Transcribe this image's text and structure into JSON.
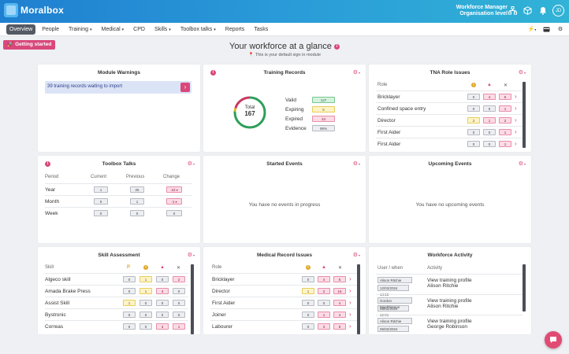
{
  "header": {
    "logo_text": "Moralbox",
    "org_title": "Workforce Manager",
    "org_level": "Organisation level",
    "avatar_initials": "JD"
  },
  "nav": {
    "items": [
      {
        "label": "Overview",
        "active": true,
        "dropdown": false
      },
      {
        "label": "People",
        "active": false,
        "dropdown": false
      },
      {
        "label": "Training",
        "active": false,
        "dropdown": true
      },
      {
        "label": "Medical",
        "active": false,
        "dropdown": true
      },
      {
        "label": "CPD",
        "active": false,
        "dropdown": false
      },
      {
        "label": "Skills",
        "active": false,
        "dropdown": true
      },
      {
        "label": "Toolbox talks",
        "active": false,
        "dropdown": true
      },
      {
        "label": "Reports",
        "active": false,
        "dropdown": false
      },
      {
        "label": "Tasks",
        "active": false,
        "dropdown": false
      }
    ]
  },
  "getting_started_label": "Getting started",
  "page": {
    "title": "Your workforce at a glance",
    "subtitle": "This is your default sign in module"
  },
  "module_warnings": {
    "title": "Module Warnings",
    "message": "39 training records waiting to import"
  },
  "training_records": {
    "title": "Training Records",
    "total_label": "Total",
    "total": "167",
    "legend": [
      {
        "label": "Valid",
        "value": "127",
        "color": "green"
      },
      {
        "label": "Expiring",
        "value": "6",
        "color": "yellow"
      },
      {
        "label": "Expired",
        "value": "34",
        "color": "red"
      },
      {
        "label": "Evidence",
        "value": "95%",
        "color": "grey"
      }
    ]
  },
  "tna_role_issues": {
    "title": "TNA Role Issues",
    "col_role": "Role",
    "rows": [
      {
        "role": "Bricklayer",
        "a": "0",
        "b": "4",
        "c": "5"
      },
      {
        "role": "Confined space entry",
        "a": "0",
        "b": "0",
        "c": "1"
      },
      {
        "role": "Director",
        "a": "2",
        "b": "1",
        "c": "2"
      },
      {
        "role": "First Aider",
        "a": "0",
        "b": "0",
        "c": "1"
      },
      {
        "role": "First Aider",
        "a": "0",
        "b": "0",
        "c": "1"
      }
    ]
  },
  "toolbox_talks": {
    "title": "Toolbox Talks",
    "cols": [
      "Period",
      "Current",
      "Previous",
      "Change"
    ],
    "rows": [
      {
        "period": "Year",
        "current": "1",
        "previous": "25",
        "change": "-24"
      },
      {
        "period": "Month",
        "current": "0",
        "previous": "1",
        "change": "-1"
      },
      {
        "period": "Week",
        "current": "0",
        "previous": "0",
        "change": "0"
      }
    ]
  },
  "started_events": {
    "title": "Started Events",
    "empty": "You have no events in progress"
  },
  "upcoming_events": {
    "title": "Upcoming Events",
    "empty": "You have no upcoming events"
  },
  "skill_assessment": {
    "title": "Skill Assessment",
    "col_skill": "Skill",
    "col_p": "P",
    "rows": [
      {
        "skill": "Algeco skill",
        "p": "0",
        "i": "1",
        "w": "0",
        "x": "2"
      },
      {
        "skill": "Amada Brake Press",
        "p": "0",
        "i": "1",
        "w": "3",
        "x": "0"
      },
      {
        "skill": "Assist Skill",
        "p": "1",
        "i": "0",
        "w": "0",
        "x": "0"
      },
      {
        "skill": "Bystronic",
        "p": "0",
        "i": "0",
        "w": "0",
        "x": "0"
      },
      {
        "skill": "Correas",
        "p": "0",
        "i": "0",
        "w": "3",
        "x": "1"
      }
    ]
  },
  "medical_record_issues": {
    "title": "Medical Record Issues",
    "col_role": "Role",
    "rows": [
      {
        "role": "Bricklayer",
        "a": "0",
        "b": "4",
        "c": "6"
      },
      {
        "role": "Director",
        "a": "1",
        "b": "2",
        "c": "16"
      },
      {
        "role": "First Aider",
        "a": "0",
        "b": "0",
        "c": "4"
      },
      {
        "role": "Joiner",
        "a": "0",
        "b": "1",
        "c": "4"
      },
      {
        "role": "Labourer",
        "a": "0",
        "b": "3",
        "c": "8"
      }
    ]
  },
  "workforce_activity": {
    "title": "Workforce Activity",
    "col_user": "User / when",
    "col_activity": "Activity",
    "rows": [
      {
        "user": "Alison Ritchie",
        "when": "12/02/2024 14:18",
        "activity": "View training profile",
        "person": "Alison Ritchie"
      },
      {
        "user": "Gordon MacPherson",
        "when": "05/02/2024 12:01",
        "activity": "View training profile",
        "person": "Alison Ritchie"
      },
      {
        "user": "Alison Ritchie",
        "when": "06/02/2024 14:18",
        "activity": "View training profile",
        "person": "George Robinson"
      }
    ]
  },
  "donut": {
    "valid": 127,
    "expiring": 6,
    "expired": 34,
    "colors": {
      "valid": "#2e9f5a",
      "expiring": "#e0b92a",
      "expired": "#c8395f"
    }
  }
}
